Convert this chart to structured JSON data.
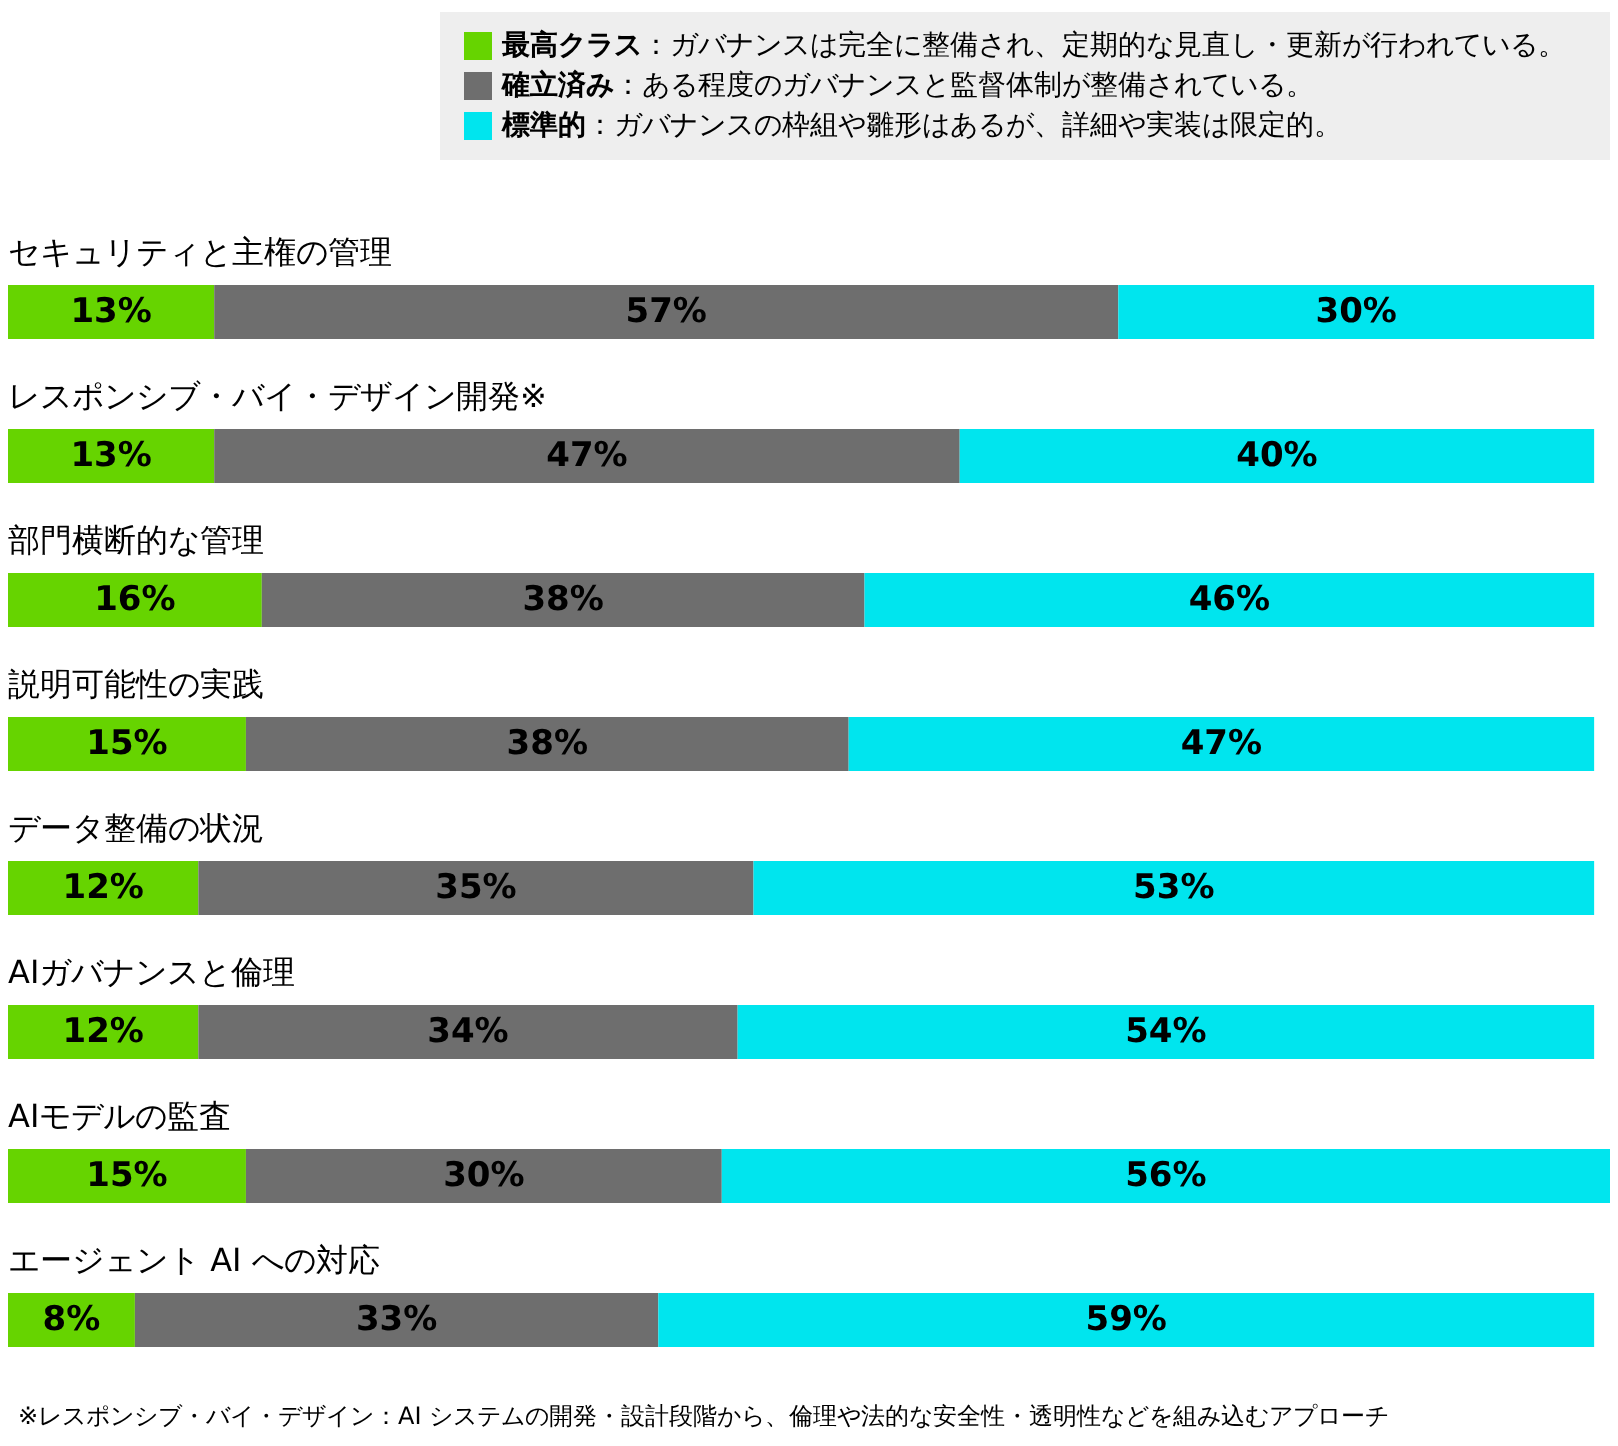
{
  "chart_data": {
    "type": "bar",
    "orientation": "horizontal",
    "stacked": true,
    "categories": [
      "セキュリティと主権の管理",
      "レスポンシブ・バイ・デザイン開発※",
      "部門横断的な管理",
      "説明可能性の実践",
      "データ整備の状況",
      "AIガバナンスと倫理",
      "AIモデルの監査",
      "エージェント AI への対応"
    ],
    "series": [
      {
        "name": "最高クラス：ガバナンスは完全に整備され、定期的な見直し・更新が行われている。",
        "color": "#66d400",
        "values": [
          13,
          13,
          16,
          15,
          12,
          12,
          15,
          8
        ],
        "value_labels": [
          "13%",
          "13%",
          "16%",
          "15%",
          "12%",
          "12%",
          "15%",
          "8%"
        ]
      },
      {
        "name": "確立済み：ある程度のガバナンスと監督体制が整備されている。",
        "color": "#6e6e6e",
        "values": [
          57,
          47,
          38,
          38,
          35,
          34,
          30,
          33
        ],
        "value_labels": [
          "57%",
          "47%",
          "38%",
          "38%",
          "35%",
          "34%",
          "30%",
          "33%"
        ]
      },
      {
        "name": "標準的：ガバナンスの枠組や雛形はあるが、詳細や実装は限定的。",
        "color": "#00e5ee",
        "values": [
          30,
          40,
          46,
          47,
          53,
          54,
          56,
          59
        ],
        "value_labels": [
          "30%",
          "40%",
          "46%",
          "47%",
          "53%",
          "54%",
          "56%",
          "59%"
        ]
      }
    ],
    "tick_labels": false,
    "legend": "top right",
    "annotations": [
      "※レスポンシブ・バイ・デザイン：AI システムの開発・設計段階から、倫理や法的な安全性・透明性などを組み込むアプローチ"
    ]
  }
}
